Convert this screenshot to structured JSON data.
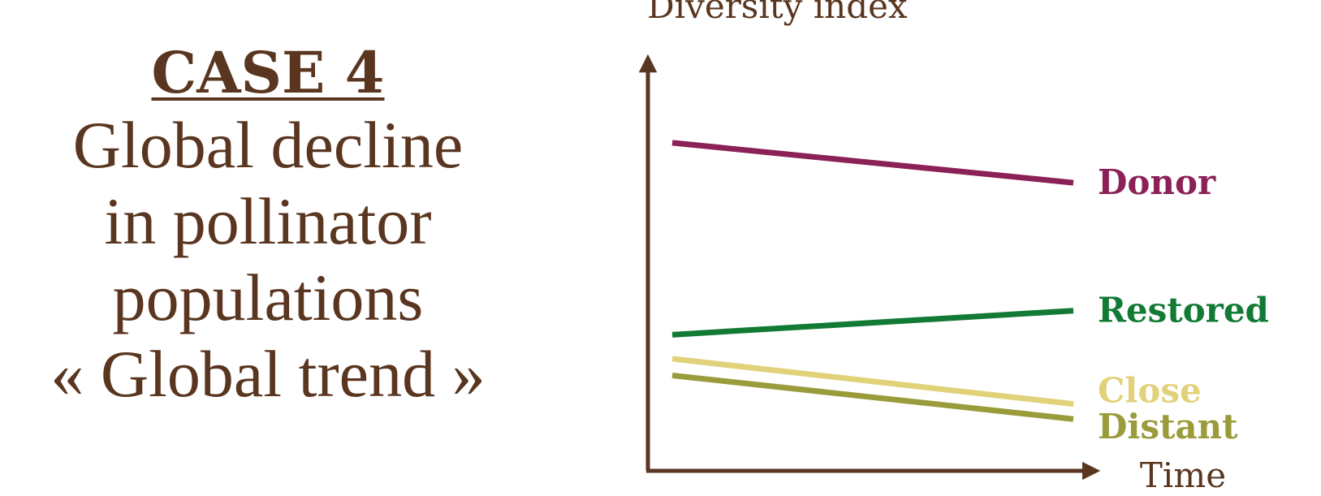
{
  "case": {
    "heading": "CASE 4",
    "lines": [
      "Global decline",
      "in pollinator",
      "populations",
      "« Global trend »"
    ]
  },
  "colors": {
    "text": "#5a3620",
    "axis": "#5a3620"
  },
  "chart_data": {
    "type": "line",
    "title": "",
    "xlabel": "Time",
    "ylabel": "Diversity index",
    "xlim": [
      0,
      1
    ],
    "ylim": [
      0,
      1
    ],
    "grid": false,
    "x_ticks_shown": false,
    "y_ticks_shown": false,
    "legend": "direct labels at the right end of each line",
    "series": [
      {
        "name": "Donor",
        "color": "#8b2157",
        "x": [
          0,
          1
        ],
        "y": [
          0.805,
          0.707
        ]
      },
      {
        "name": "Restored",
        "color": "#127a35",
        "x": [
          0,
          1
        ],
        "y": [
          0.334,
          0.393
        ]
      },
      {
        "name": "Close",
        "color": "#e1d27a",
        "x": [
          0,
          1
        ],
        "y": [
          0.275,
          0.164
        ]
      },
      {
        "name": "Distant",
        "color": "#9a9b3b",
        "x": [
          0,
          1
        ],
        "y": [
          0.234,
          0.127
        ]
      }
    ]
  }
}
